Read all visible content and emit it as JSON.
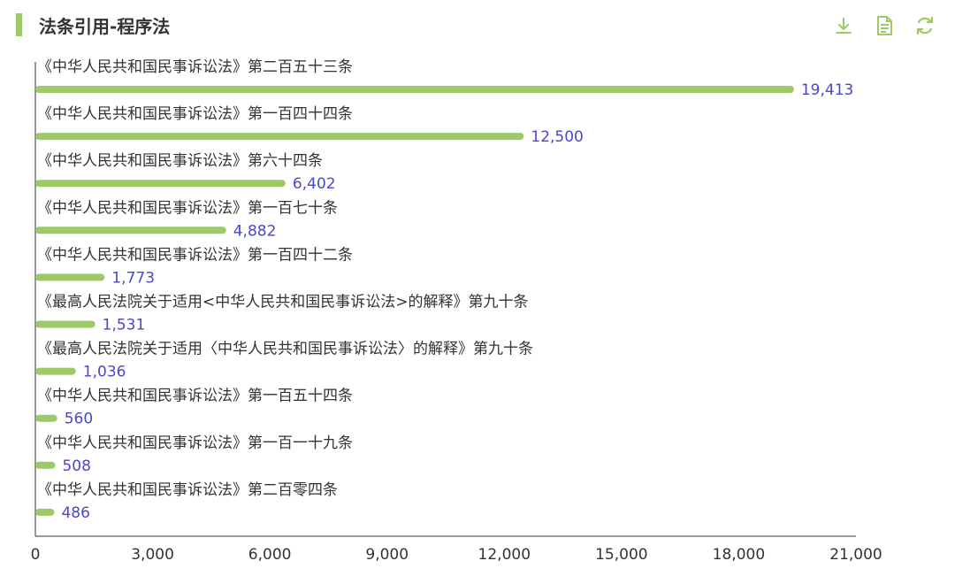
{
  "header": {
    "title": "法条引用-程序法",
    "accent": "#9dc96b"
  },
  "toolbar": {
    "icons": [
      "download-icon",
      "document-icon",
      "refresh-icon"
    ],
    "color": "#9dc96b"
  },
  "chart_data": {
    "type": "bar",
    "orientation": "horizontal",
    "title": "法条引用-程序法",
    "categories": [
      "《中华人民共和国民事诉讼法》第二百五十三条",
      "《中华人民共和国民事诉讼法》第一百四十四条",
      "《中华人民共和国民事诉讼法》第六十四条",
      "《中华人民共和国民事诉讼法》第一百七十条",
      "《中华人民共和国民事诉讼法》第一百四十二条",
      "《最高人民法院关于适用<中华人民共和国民事诉讼法>的解释》第九十条",
      "《最高人民法院关于适用〈中华人民共和国民事诉讼法〉的解释》第九十条",
      "《中华人民共和国民事诉讼法》第一百五十四条",
      "《中华人民共和国民事诉讼法》第一百一十九条",
      "《中华人民共和国民事诉讼法》第二百零四条"
    ],
    "values": [
      19413,
      12500,
      6402,
      4882,
      1773,
      1531,
      1036,
      560,
      508,
      486
    ],
    "value_labels": [
      "19,413",
      "12,500",
      "6,402",
      "4,882",
      "1,773",
      "1,531",
      "1,036",
      "560",
      "508",
      "486"
    ],
    "xlim": [
      0,
      21000
    ],
    "x_ticks": [
      0,
      3000,
      6000,
      9000,
      12000,
      15000,
      18000,
      21000
    ],
    "x_tick_labels": [
      "0",
      "3,000",
      "6,000",
      "9,000",
      "12,000",
      "15,000",
      "18,000",
      "21,000"
    ],
    "bar_color": "#9dc96b",
    "value_label_color": "#4a47c8",
    "grid": false,
    "legend": "none"
  }
}
